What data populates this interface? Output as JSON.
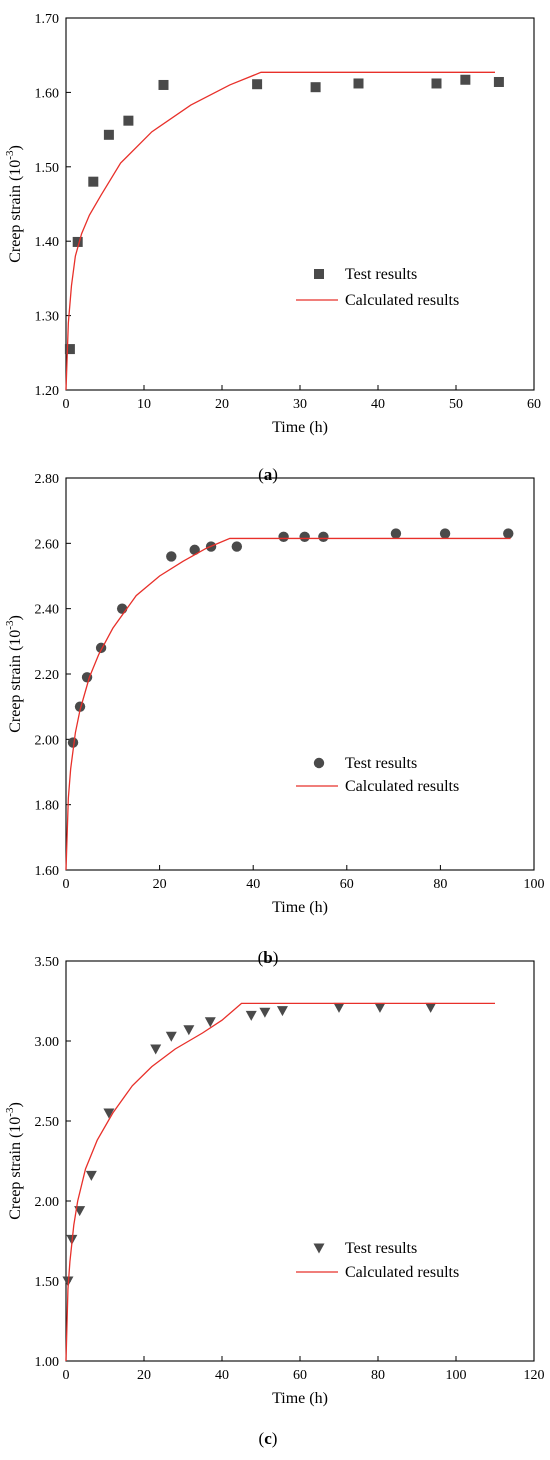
{
  "chart_data": [
    {
      "type": "scatter",
      "panel": "a",
      "xlabel": "Time (h)",
      "ylabel_main": "Creep strain (10",
      "ylabel_sup": "-3",
      "ylabel_end": ")",
      "xlim": [
        0,
        60
      ],
      "ylim": [
        1.2,
        1.7
      ],
      "xticks": [
        0,
        10,
        20,
        30,
        40,
        50,
        60
      ],
      "yticks": [
        1.2,
        1.3,
        1.4,
        1.5,
        1.6,
        1.7
      ],
      "ytick_decimals": 2,
      "grid": false,
      "legend_position": "right",
      "marker": "square",
      "marker_color": "#4a4a4a",
      "line_color": "#e8302a",
      "series": [
        {
          "name": "Test results",
          "kind": "points",
          "x": [
            0.5,
            1.5,
            3.5,
            5.5,
            8.0,
            12.5,
            24.5,
            32.0,
            37.5,
            47.5,
            51.2,
            55.5
          ],
          "y": [
            1.255,
            1.399,
            1.48,
            1.543,
            1.562,
            1.61,
            1.611,
            1.607,
            1.612,
            1.612,
            1.617,
            1.614
          ]
        },
        {
          "name": "Calculated results",
          "kind": "line",
          "x": [
            0,
            0.3,
            0.7,
            1.2,
            2,
            3,
            4.5,
            7,
            11,
            16,
            21,
            25,
            30,
            40,
            50,
            55
          ],
          "y": [
            1.2,
            1.29,
            1.34,
            1.38,
            1.41,
            1.435,
            1.462,
            1.505,
            1.547,
            1.583,
            1.61,
            1.627,
            1.627,
            1.627,
            1.627,
            1.627
          ]
        }
      ]
    },
    {
      "type": "scatter",
      "panel": "b",
      "xlabel": "Time (h)",
      "ylabel_main": "Creep strain (10",
      "ylabel_sup": "-3",
      "ylabel_end": ")",
      "xlim": [
        0,
        100
      ],
      "ylim": [
        1.6,
        2.8
      ],
      "xticks": [
        0,
        20,
        40,
        60,
        80,
        100
      ],
      "yticks": [
        1.6,
        1.8,
        2.0,
        2.2,
        2.4,
        2.6,
        2.8
      ],
      "ytick_decimals": 2,
      "grid": false,
      "legend_position": "right",
      "marker": "circle",
      "marker_color": "#4a4a4a",
      "line_color": "#e8302a",
      "series": [
        {
          "name": "Test results",
          "kind": "points",
          "x": [
            1.5,
            3.0,
            4.5,
            7.5,
            12.0,
            22.5,
            27.5,
            31.0,
            36.5,
            46.5,
            51.0,
            55.0,
            70.5,
            81.0,
            94.5
          ],
          "y": [
            1.99,
            2.1,
            2.19,
            2.28,
            2.4,
            2.56,
            2.58,
            2.59,
            2.59,
            2.62,
            2.62,
            2.62,
            2.63,
            2.63,
            2.63
          ]
        },
        {
          "name": "Calculated results",
          "kind": "line",
          "x": [
            0,
            0.5,
            1,
            2,
            3,
            5,
            7,
            10,
            15,
            20,
            25,
            30,
            35,
            45,
            60,
            80,
            95
          ],
          "y": [
            1.6,
            1.82,
            1.91,
            2.02,
            2.09,
            2.19,
            2.26,
            2.34,
            2.44,
            2.5,
            2.545,
            2.585,
            2.615,
            2.615,
            2.615,
            2.615,
            2.615
          ]
        }
      ]
    },
    {
      "type": "scatter",
      "panel": "c",
      "xlabel": "Time (h)",
      "ylabel_main": "Creep strain (10",
      "ylabel_sup": "-3",
      "ylabel_end": ")",
      "xlim": [
        0,
        120
      ],
      "ylim": [
        1.0,
        3.5
      ],
      "xticks": [
        0,
        20,
        40,
        60,
        80,
        100,
        120
      ],
      "yticks": [
        1.0,
        1.5,
        2.0,
        2.5,
        3.0,
        3.5
      ],
      "ytick_decimals": 2,
      "grid": false,
      "legend_position": "right",
      "marker": "triangle-down",
      "marker_color": "#4a4a4a",
      "line_color": "#e8302a",
      "series": [
        {
          "name": "Test results",
          "kind": "points",
          "x": [
            0.5,
            1.5,
            3.5,
            6.5,
            11.0,
            23.0,
            27.0,
            31.5,
            37.0,
            47.5,
            51.0,
            55.5,
            70.0,
            80.5,
            93.5
          ],
          "y": [
            1.5,
            1.76,
            1.94,
            2.16,
            2.55,
            2.95,
            3.03,
            3.07,
            3.12,
            3.16,
            3.18,
            3.19,
            3.21,
            3.21,
            3.21
          ]
        },
        {
          "name": "Calculated results",
          "kind": "line",
          "x": [
            0,
            0.5,
            1,
            2,
            3,
            5,
            8,
            12,
            17,
            22,
            28,
            35,
            40,
            45,
            60,
            80,
            100,
            110
          ],
          "y": [
            1.0,
            1.45,
            1.62,
            1.85,
            2.0,
            2.2,
            2.38,
            2.55,
            2.72,
            2.84,
            2.95,
            3.05,
            3.13,
            3.235,
            3.235,
            3.235,
            3.235,
            3.235
          ]
        }
      ]
    }
  ]
}
